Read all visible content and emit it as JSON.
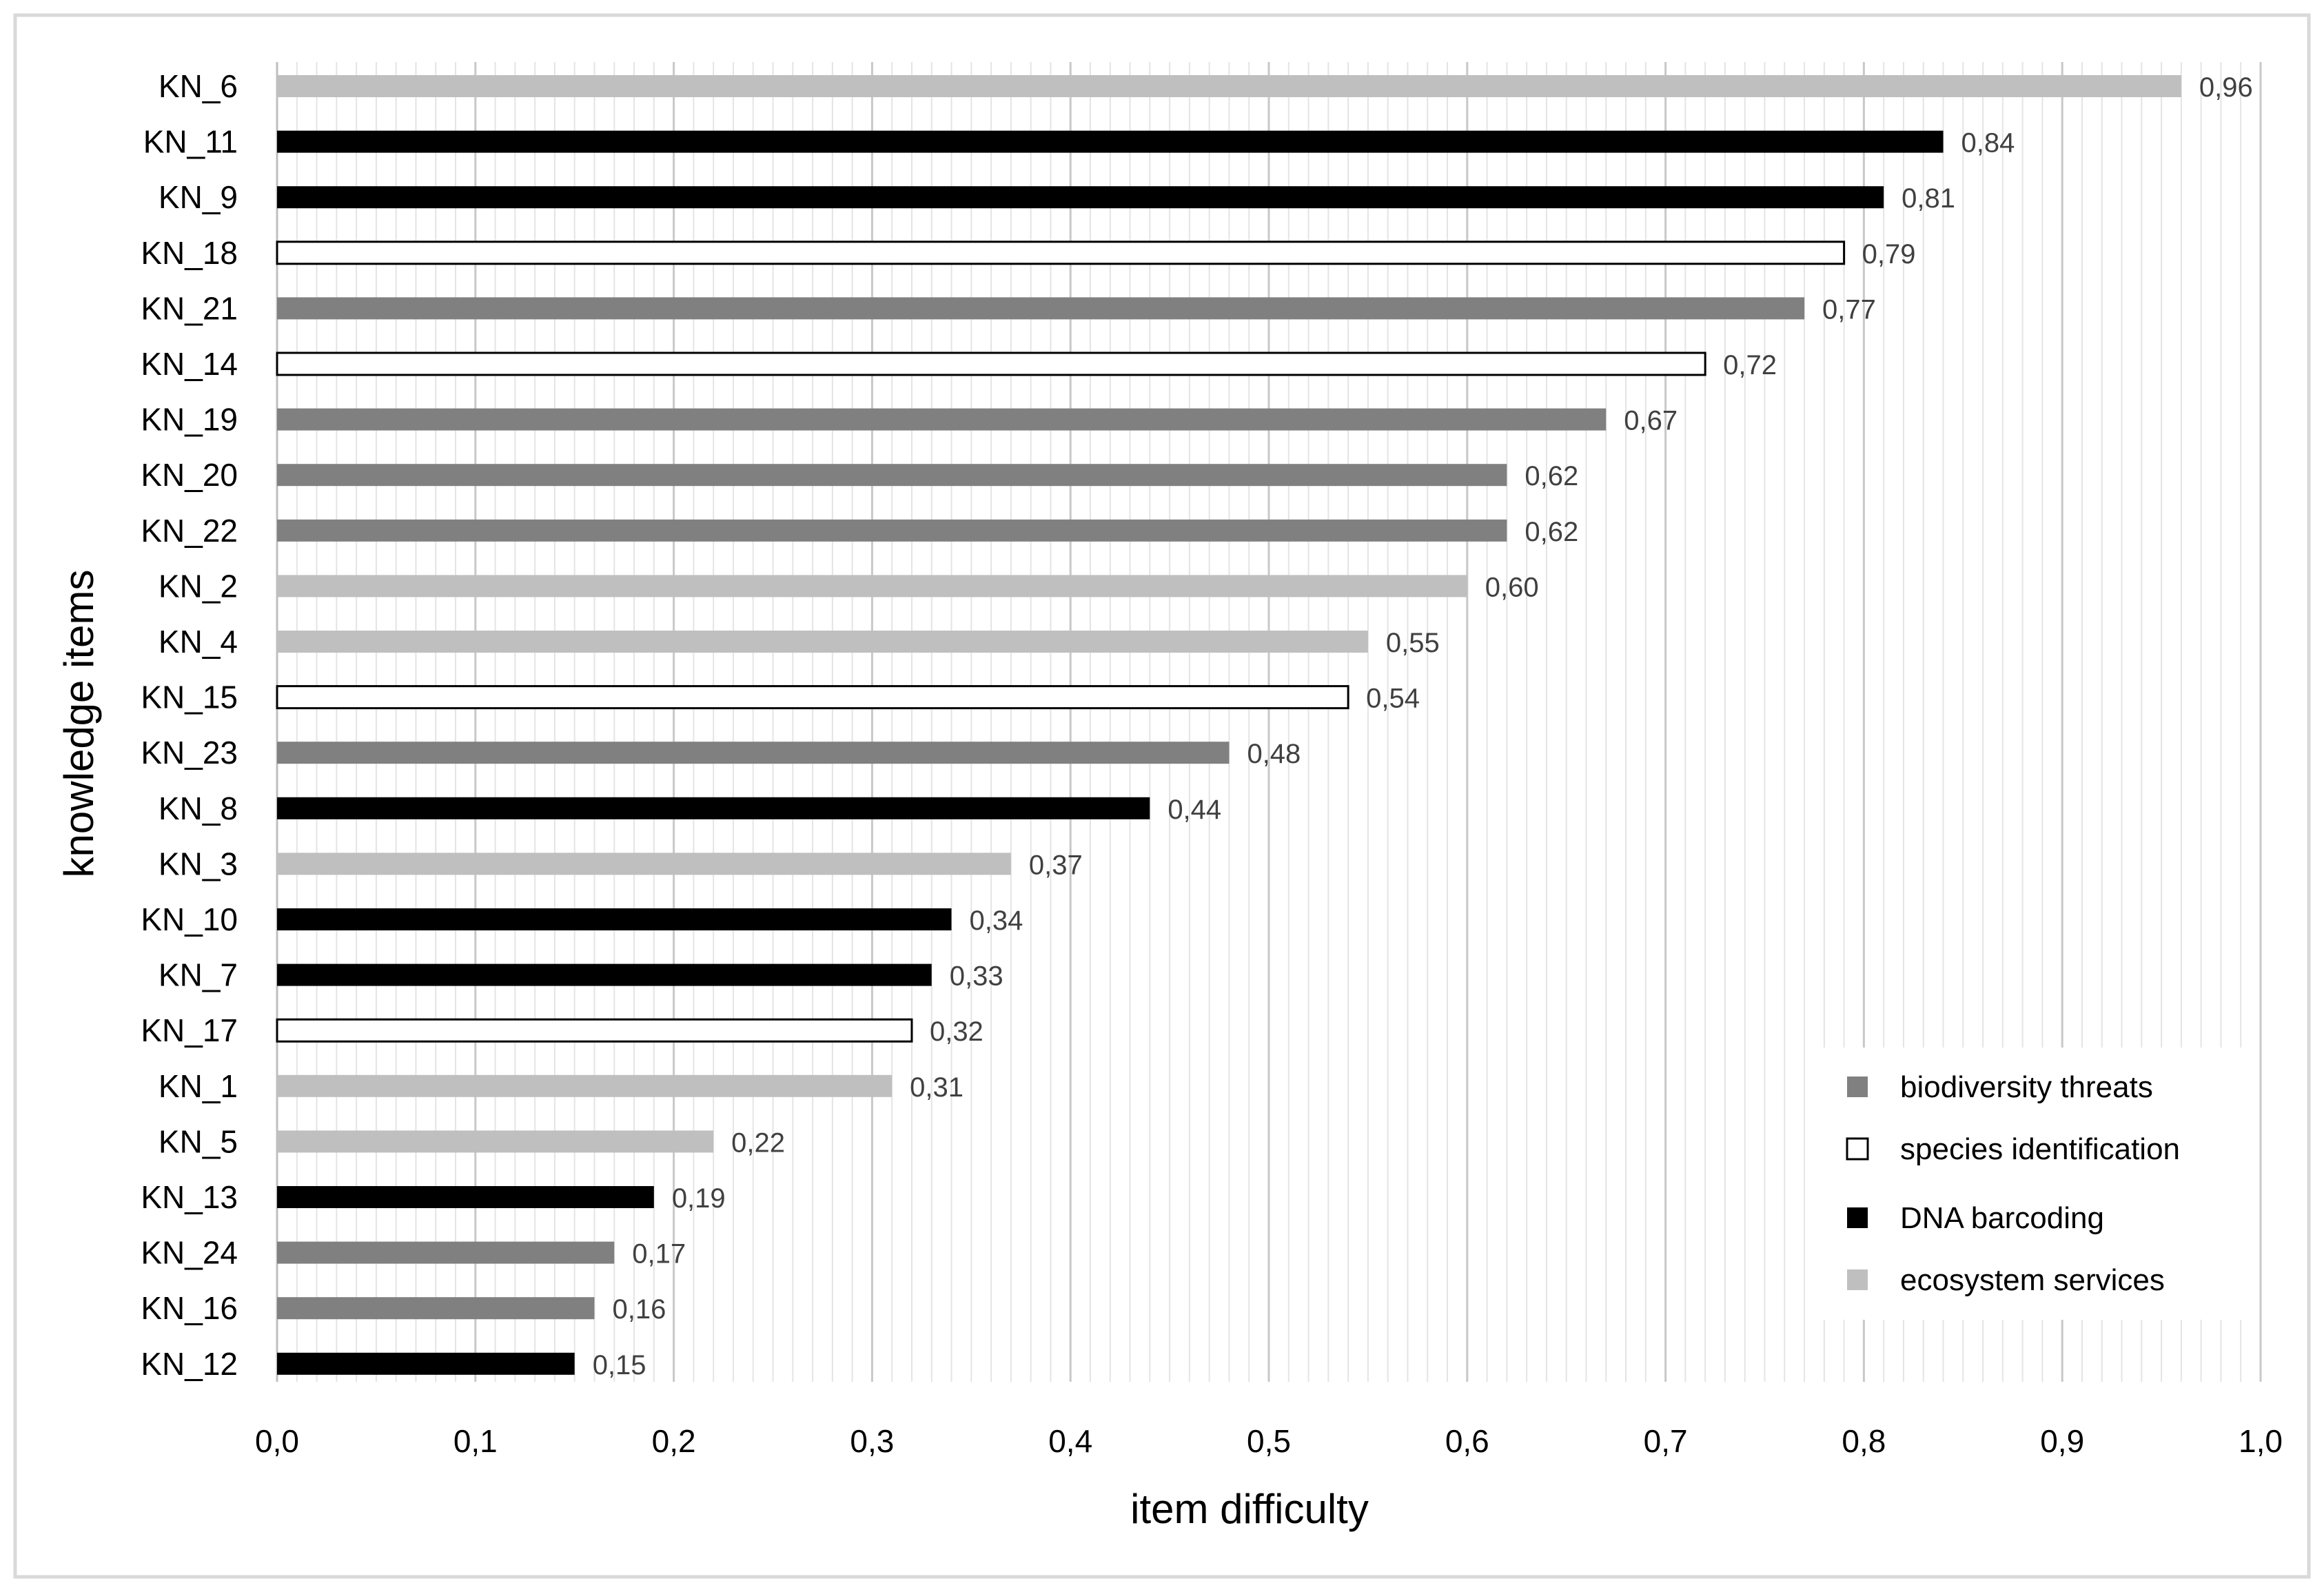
{
  "chart_data": {
    "type": "bar",
    "orientation": "horizontal",
    "xlabel": "item difficulty",
    "ylabel": "knowledge items",
    "xlim": [
      0,
      1
    ],
    "x_major_step": 0.1,
    "x_minor_step": 0.01,
    "decimal_separator": ",",
    "grid": true,
    "legend_position": "bottom-right",
    "x_tick_labels": [
      "0,0",
      "0,1",
      "0,2",
      "0,3",
      "0,4",
      "0,5",
      "0,6",
      "0,7",
      "0,8",
      "0,9",
      "1,0"
    ],
    "groups": [
      {
        "name": "biodiversity threats",
        "color": "#808080",
        "outline": false
      },
      {
        "name": "species identification",
        "color": "#ffffff",
        "outline": true
      },
      {
        "name": "DNA barcoding",
        "color": "#000000",
        "outline": false
      },
      {
        "name": "ecosystem services",
        "color": "#bfbfbf",
        "outline": false
      }
    ],
    "bars": [
      {
        "label": "KN_6",
        "value": 0.96,
        "display": "0,96",
        "group": "ecosystem services"
      },
      {
        "label": "KN_11",
        "value": 0.84,
        "display": "0,84",
        "group": "DNA barcoding"
      },
      {
        "label": "KN_9",
        "value": 0.81,
        "display": "0,81",
        "group": "DNA barcoding"
      },
      {
        "label": "KN_18",
        "value": 0.79,
        "display": "0,79",
        "group": "species identification"
      },
      {
        "label": "KN_21",
        "value": 0.77,
        "display": "0,77",
        "group": "biodiversity threats"
      },
      {
        "label": "KN_14",
        "value": 0.72,
        "display": "0,72",
        "group": "species identification"
      },
      {
        "label": "KN_19",
        "value": 0.67,
        "display": "0,67",
        "group": "biodiversity threats"
      },
      {
        "label": "KN_20",
        "value": 0.62,
        "display": "0,62",
        "group": "biodiversity threats"
      },
      {
        "label": "KN_22",
        "value": 0.62,
        "display": "0,62",
        "group": "biodiversity threats"
      },
      {
        "label": "KN_2",
        "value": 0.6,
        "display": "0,60",
        "group": "ecosystem services"
      },
      {
        "label": "KN_4",
        "value": 0.55,
        "display": "0,55",
        "group": "ecosystem services"
      },
      {
        "label": "KN_15",
        "value": 0.54,
        "display": "0,54",
        "group": "species identification"
      },
      {
        "label": "KN_23",
        "value": 0.48,
        "display": "0,48",
        "group": "biodiversity threats"
      },
      {
        "label": "KN_8",
        "value": 0.44,
        "display": "0,44",
        "group": "DNA barcoding"
      },
      {
        "label": "KN_3",
        "value": 0.37,
        "display": "0,37",
        "group": "ecosystem services"
      },
      {
        "label": "KN_10",
        "value": 0.34,
        "display": "0,34",
        "group": "DNA barcoding"
      },
      {
        "label": "KN_7",
        "value": 0.33,
        "display": "0,33",
        "group": "DNA barcoding"
      },
      {
        "label": "KN_17",
        "value": 0.32,
        "display": "0,32",
        "group": "species identification"
      },
      {
        "label": "KN_1",
        "value": 0.31,
        "display": "0,31",
        "group": "ecosystem services"
      },
      {
        "label": "KN_5",
        "value": 0.22,
        "display": "0,22",
        "group": "ecosystem services"
      },
      {
        "label": "KN_13",
        "value": 0.19,
        "display": "0,19",
        "group": "DNA barcoding"
      },
      {
        "label": "KN_24",
        "value": 0.17,
        "display": "0,17",
        "group": "biodiversity threats"
      },
      {
        "label": "KN_16",
        "value": 0.16,
        "display": "0,16",
        "group": "biodiversity threats"
      },
      {
        "label": "KN_12",
        "value": 0.15,
        "display": "0,15",
        "group": "DNA barcoding"
      }
    ]
  }
}
